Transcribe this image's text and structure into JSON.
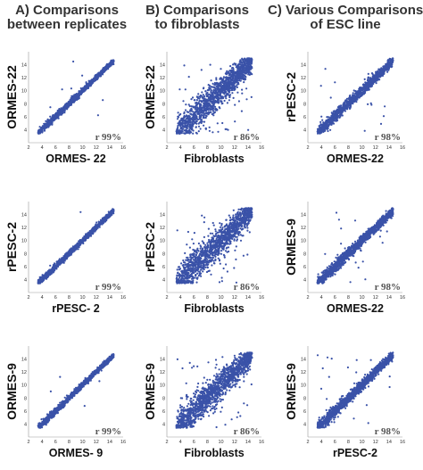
{
  "headers": [
    {
      "label": "A) Comparisons between replicates",
      "lines": [
        "A) Comparisons",
        "between replicates"
      ]
    },
    {
      "label": "B) Comparisons to fibroblasts",
      "lines": [
        "B) Comparisons",
        "to fibroblasts"
      ]
    },
    {
      "label": "C) Various Comparisons of ESC line",
      "lines": [
        "C) Various Comparisons",
        "of ESC line"
      ]
    }
  ],
  "colors": {
    "points": "#3a52a8",
    "axis": "#999999"
  },
  "chart_data": [
    {
      "id": "A1",
      "type": "scatter",
      "xlabel": "ORMES- 22",
      "ylabel": "ORMES-22",
      "r_label": "r 99%",
      "xlim": [
        2,
        16
      ],
      "ylim": [
        2,
        16
      ],
      "xticks": [
        "2",
        "4",
        "6",
        "8",
        "10",
        "12",
        "14",
        "16"
      ],
      "yticks": [
        "4",
        "6",
        "8",
        "10",
        "12",
        "14"
      ],
      "spread": 0.28,
      "outlier": 0.004,
      "floor": 3.4
    },
    {
      "id": "B1",
      "type": "scatter",
      "xlabel": "Fibroblasts",
      "ylabel": "ORMES-22",
      "r_label": "r 86%",
      "xlim": [
        2,
        16
      ],
      "ylim": [
        2,
        16
      ],
      "xticks": [
        "2",
        "4",
        "6",
        "8",
        "10",
        "12",
        "14",
        "16"
      ],
      "yticks": [
        "4",
        "6",
        "8",
        "10",
        "12",
        "14"
      ],
      "spread": 1.35,
      "outlier": 0.03,
      "floor": 3.4
    },
    {
      "id": "C1",
      "type": "scatter",
      "xlabel": "ORMES-22",
      "ylabel": "rPESC-2",
      "r_label": "r 98%",
      "xlim": [
        2,
        16
      ],
      "ylim": [
        2,
        16
      ],
      "xticks": [
        "2",
        "4",
        "6",
        "8",
        "10",
        "12",
        "14",
        "16"
      ],
      "yticks": [
        "4",
        "6",
        "8",
        "10",
        "12",
        "14"
      ],
      "spread": 0.5,
      "outlier": 0.012,
      "floor": 3.4
    },
    {
      "id": "A2",
      "type": "scatter",
      "xlabel": "rPESC- 2",
      "ylabel": "rPESC-2",
      "r_label": "r 99%",
      "xlim": [
        2,
        16
      ],
      "ylim": [
        2,
        16
      ],
      "xticks": [
        "2",
        "4",
        "6",
        "8",
        "10",
        "12",
        "14",
        "16"
      ],
      "yticks": [
        "4",
        "6",
        "8",
        "10",
        "12",
        "14"
      ],
      "spread": 0.26,
      "outlier": 0.004,
      "floor": 3.4
    },
    {
      "id": "B2",
      "type": "scatter",
      "xlabel": "Fibroblasts",
      "ylabel": "rPESC-2",
      "r_label": "r 86%",
      "xlim": [
        2,
        16
      ],
      "ylim": [
        2,
        16
      ],
      "xticks": [
        "2",
        "4",
        "6",
        "8",
        "10",
        "12",
        "14",
        "16"
      ],
      "yticks": [
        "4",
        "6",
        "8",
        "10",
        "12",
        "14"
      ],
      "spread": 1.4,
      "outlier": 0.03,
      "floor": 3.4
    },
    {
      "id": "C2",
      "type": "scatter",
      "xlabel": "ORMES-22",
      "ylabel": "ORMES-9",
      "r_label": "r 98%",
      "xlim": [
        2,
        16
      ],
      "ylim": [
        2,
        16
      ],
      "xticks": [
        "2",
        "4",
        "6",
        "8",
        "10",
        "12",
        "14",
        "16"
      ],
      "yticks": [
        "4",
        "6",
        "8",
        "10",
        "12",
        "14"
      ],
      "spread": 0.5,
      "outlier": 0.012,
      "floor": 3.4
    },
    {
      "id": "A3",
      "type": "scatter",
      "xlabel": "ORMES- 9",
      "ylabel": "ORMES-9",
      "r_label": "r 99%",
      "xlim": [
        2,
        16
      ],
      "ylim": [
        2,
        16
      ],
      "xticks": [
        "2",
        "4",
        "6",
        "8",
        "10",
        "12",
        "14",
        "16"
      ],
      "yticks": [
        "4",
        "6",
        "8",
        "10",
        "12",
        "14"
      ],
      "spread": 0.27,
      "outlier": 0.004,
      "floor": 3.4
    },
    {
      "id": "B3",
      "type": "scatter",
      "xlabel": "Fibroblasts",
      "ylabel": "ORMES-9",
      "r_label": "r 86%",
      "xlim": [
        2,
        16
      ],
      "ylim": [
        2,
        16
      ],
      "xticks": [
        "2",
        "4",
        "6",
        "8",
        "10",
        "12",
        "14",
        "16"
      ],
      "yticks": [
        "4",
        "6",
        "8",
        "10",
        "12",
        "14"
      ],
      "spread": 1.35,
      "outlier": 0.03,
      "floor": 3.4
    },
    {
      "id": "C3",
      "type": "scatter",
      "xlabel": "rPESC-2",
      "ylabel": "ORMES-9",
      "r_label": "r 98%",
      "xlim": [
        2,
        16
      ],
      "ylim": [
        2,
        16
      ],
      "xticks": [
        "2",
        "4",
        "6",
        "8",
        "10",
        "12",
        "14",
        "16"
      ],
      "yticks": [
        "4",
        "6",
        "8",
        "10",
        "12",
        "14"
      ],
      "spread": 0.5,
      "outlier": 0.012,
      "floor": 3.4
    }
  ]
}
